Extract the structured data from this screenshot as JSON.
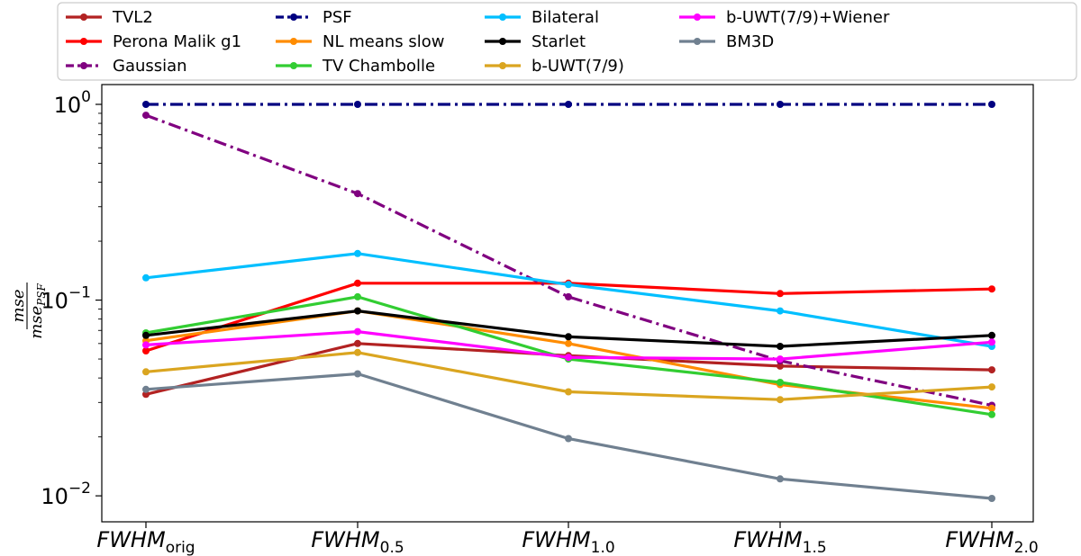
{
  "chart_data": {
    "type": "line",
    "title": "",
    "xlabel": "",
    "ylabel": "mse / mse_PSF",
    "ylabel_num": "mse",
    "ylabel_den": "mse",
    "ylabel_den_sub": "PSF",
    "yscale": "log",
    "ylim": [
      0.0085,
      1.2
    ],
    "grid": false,
    "legend_position": "top",
    "x": [
      "FWHM_orig",
      "FWHM_0.5",
      "FWHM_1.0",
      "FWHM_1.5",
      "FWHM_2.0"
    ],
    "x_tick_labels": [
      {
        "main": "FWHM",
        "sub": "orig"
      },
      {
        "main": "FWHM",
        "sub": "0.5"
      },
      {
        "main": "FWHM",
        "sub": "1.0"
      },
      {
        "main": "FWHM",
        "sub": "1.5"
      },
      {
        "main": "FWHM",
        "sub": "2.0"
      }
    ],
    "y_ticks": [
      {
        "value": 1,
        "base": "10",
        "exp": "0"
      },
      {
        "value": 0.1,
        "base": "10",
        "exp": "−1"
      },
      {
        "value": 0.01,
        "base": "10",
        "exp": "−2"
      }
    ],
    "series": [
      {
        "name": "TVL2",
        "color": "#b22222",
        "dash": "solid",
        "values": [
          0.033,
          0.06,
          0.052,
          0.046,
          0.044
        ]
      },
      {
        "name": "Perona Malik g1",
        "color": "#ff0000",
        "dash": "solid",
        "values": [
          0.055,
          0.122,
          0.122,
          0.108,
          0.114
        ]
      },
      {
        "name": "Gaussian",
        "color": "#800080",
        "dash": "dashdot",
        "values": [
          0.88,
          0.35,
          0.104,
          0.049,
          0.029
        ]
      },
      {
        "name": "PSF",
        "color": "#000080",
        "dash": "dashdot",
        "values": [
          1.0,
          1.0,
          1.0,
          1.0,
          1.0
        ]
      },
      {
        "name": "NL means slow",
        "color": "#ff8c00",
        "dash": "solid",
        "values": [
          0.062,
          0.088,
          0.06,
          0.037,
          0.028
        ]
      },
      {
        "name": "TV Chambolle",
        "color": "#32cd32",
        "dash": "solid",
        "values": [
          0.068,
          0.104,
          0.05,
          0.038,
          0.026
        ]
      },
      {
        "name": "Bilateral",
        "color": "#00bfff",
        "dash": "solid",
        "values": [
          0.13,
          0.173,
          0.12,
          0.088,
          0.058
        ]
      },
      {
        "name": "Starlet",
        "color": "#000000",
        "dash": "solid",
        "values": [
          0.066,
          0.088,
          0.065,
          0.058,
          0.066
        ]
      },
      {
        "name": "b-UWT(7/9)",
        "color": "#daa520",
        "dash": "solid",
        "values": [
          0.043,
          0.054,
          0.034,
          0.031,
          0.036
        ]
      },
      {
        "name": "b-UWT(7/9)+Wiener",
        "color": "#ff00ff",
        "dash": "solid",
        "values": [
          0.059,
          0.069,
          0.051,
          0.05,
          0.061
        ]
      },
      {
        "name": "BM3D",
        "color": "#708090",
        "dash": "solid",
        "values": [
          0.035,
          0.042,
          0.0196,
          0.0122,
          0.0097
        ]
      }
    ]
  }
}
